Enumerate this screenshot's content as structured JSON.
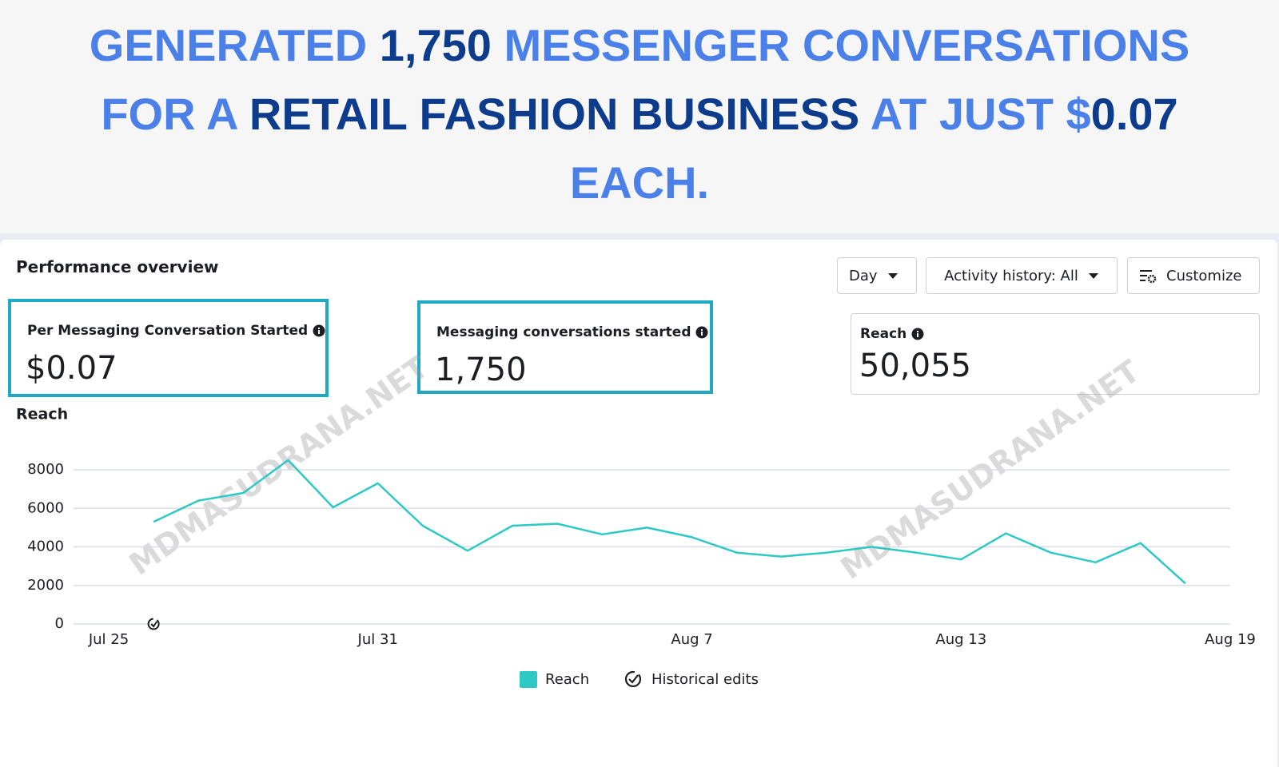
{
  "header": {
    "lines": [
      [
        {
          "text": "GENERATED ",
          "color": "#4a80e8"
        },
        {
          "text": "1,750",
          "color": "#0d3c8c"
        },
        {
          "text": " MESSENGER CONVERSATIONS",
          "color": "#4a80e8"
        }
      ],
      [
        {
          "text": "FOR A ",
          "color": "#4a80e8"
        },
        {
          "text": "RETAIL FASHION BUSINESS",
          "color": "#0d3c8c"
        },
        {
          "text": " AT JUST $",
          "color": "#4a80e8"
        },
        {
          "text": "0.07",
          "color": "#0d3c8c"
        }
      ],
      [
        {
          "text": "EACH.",
          "color": "#4a80e8"
        }
      ]
    ]
  },
  "section_title": "Performance overview",
  "toolbar": {
    "period": "Day",
    "activity": "Activity history: All",
    "customize": "Customize"
  },
  "metrics": [
    {
      "label": "Per Messaging Conversation Started",
      "value": "$0.07"
    },
    {
      "label": "Messaging conversations started",
      "value": "1,750"
    },
    {
      "label": "Reach",
      "value": "50,055"
    }
  ],
  "watermark": "MDMASUDRANA.NET",
  "chart_data": {
    "type": "line",
    "title": "Reach",
    "categories": [
      "Jul 25",
      null,
      null,
      null,
      null,
      null,
      "Jul 31",
      null,
      null,
      null,
      null,
      null,
      null,
      "Aug 7",
      null,
      null,
      null,
      null,
      null,
      "Aug 13",
      null,
      null,
      null,
      null,
      null,
      "Aug 19"
    ],
    "series": [
      {
        "name": "Reach",
        "color": "#2ec9c4",
        "values": [
          null,
          5300,
          6400,
          6800,
          8500,
          6050,
          7300,
          5100,
          3800,
          5100,
          5200,
          4650,
          5000,
          4500,
          3700,
          3500,
          3700,
          4000,
          3700,
          3350,
          4700,
          3700,
          3200,
          4200,
          2100,
          null
        ]
      }
    ],
    "ylim": [
      0,
      8000
    ],
    "yticks": [
      0,
      2000,
      4000,
      6000,
      8000
    ],
    "grid": true,
    "events_legend": "Historical edits"
  }
}
